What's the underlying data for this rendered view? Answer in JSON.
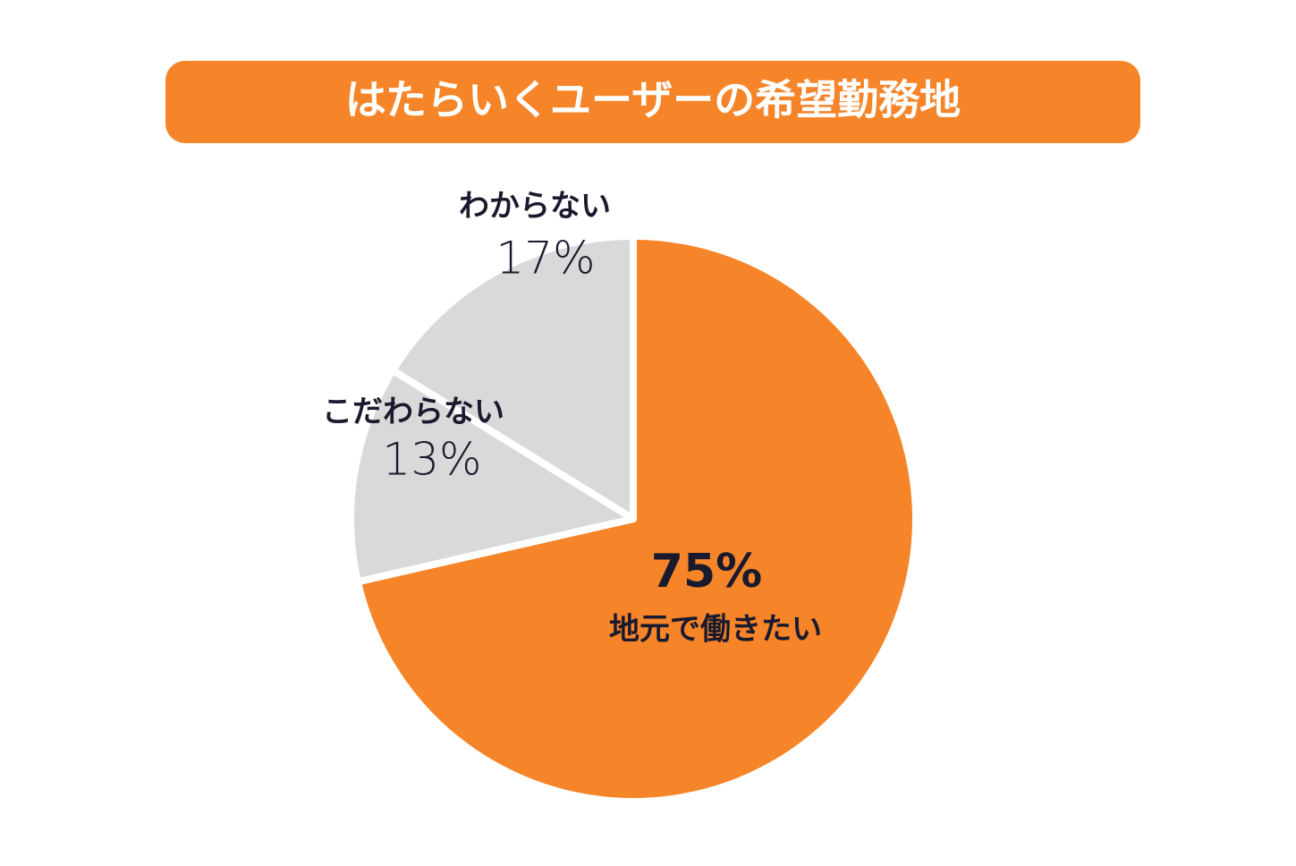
{
  "chart_data": {
    "type": "pie",
    "title": "はたらいくユーザーの希望勤務地",
    "categories": [
      "地元で働きたい",
      "こだわらない",
      "わからない"
    ],
    "values": [
      75,
      13,
      17
    ],
    "value_labels": [
      "75%",
      "13%",
      "17%"
    ],
    "colors": [
      "#f68428",
      "#d9d9d9",
      "#d9d9d9"
    ]
  }
}
